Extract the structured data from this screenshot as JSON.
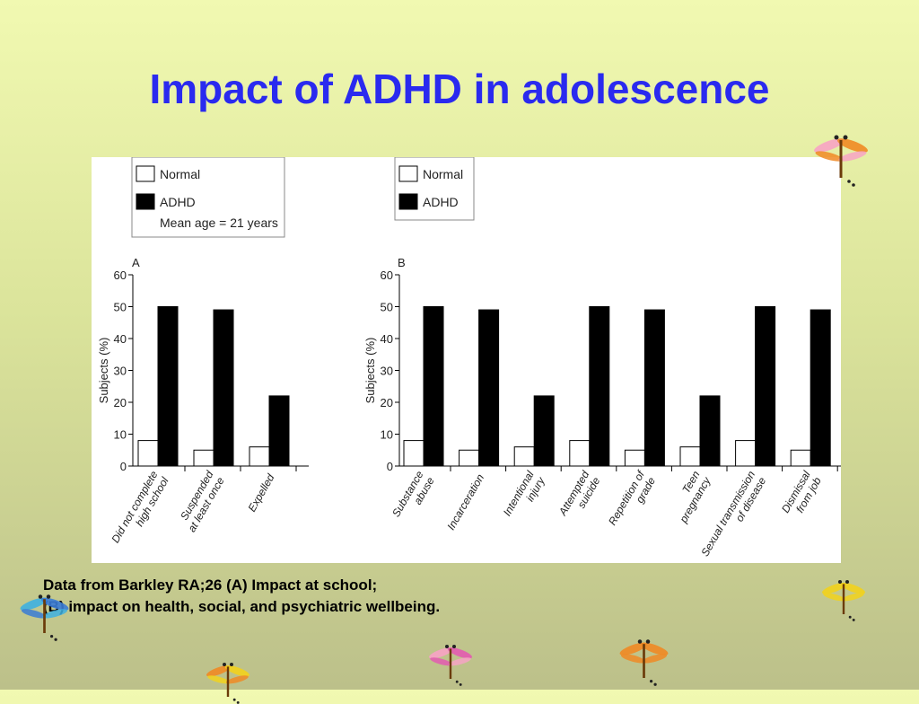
{
  "slide": {
    "title": "Impact of ADHD in adolescence",
    "caption_line1": "Data from Barkley RA;26 (A) Impact at school;",
    "caption_line2": "(B) impact on health, social, and psychiatric wellbeing."
  },
  "colors": {
    "title": "#2a2aef",
    "normal": "#ffffff",
    "adhd": "#000000"
  },
  "decorations": [
    "dragonfly-icon",
    "dragonfly-icon",
    "dragonfly-icon",
    "dragonfly-icon",
    "dragonfly-icon",
    "dragonfly-icon",
    "dragonfly-icon"
  ],
  "chart_data": [
    {
      "type": "bar",
      "panel_label": "A",
      "legend": [
        "Normal",
        "ADHD"
      ],
      "legend_note": "Mean age = 21 years",
      "ylabel": "Subjects (%)",
      "ylim": [
        0,
        60
      ],
      "yticks": [
        0,
        10,
        20,
        30,
        40,
        50,
        60
      ],
      "categories": [
        [
          "Did not complete",
          "high school"
        ],
        [
          "Suspended",
          "at least once"
        ],
        [
          "Expelled"
        ]
      ],
      "series": [
        {
          "name": "Normal",
          "values": [
            8,
            5,
            6
          ]
        },
        {
          "name": "ADHD",
          "values": [
            50,
            49,
            22
          ]
        }
      ]
    },
    {
      "type": "bar",
      "panel_label": "B",
      "legend": [
        "Normal",
        "ADHD"
      ],
      "ylabel": "Subjects (%)",
      "ylim": [
        0,
        60
      ],
      "yticks": [
        0,
        10,
        20,
        30,
        40,
        50,
        60
      ],
      "categories": [
        [
          "Substance",
          "abuse"
        ],
        [
          "Incarceration"
        ],
        [
          "Intentional",
          "injury"
        ],
        [
          "Attempted",
          "suicide"
        ],
        [
          "Repetition of",
          "grade"
        ],
        [
          "Teen",
          "pregnancy"
        ],
        [
          "Sexual transmission",
          "of disease"
        ],
        [
          "Dismissal",
          "from job"
        ]
      ],
      "series": [
        {
          "name": "Normal",
          "values": [
            8,
            5,
            6,
            8,
            5,
            6,
            8,
            5
          ]
        },
        {
          "name": "ADHD",
          "values": [
            50,
            49,
            22,
            50,
            49,
            22,
            50,
            49
          ]
        }
      ]
    }
  ]
}
